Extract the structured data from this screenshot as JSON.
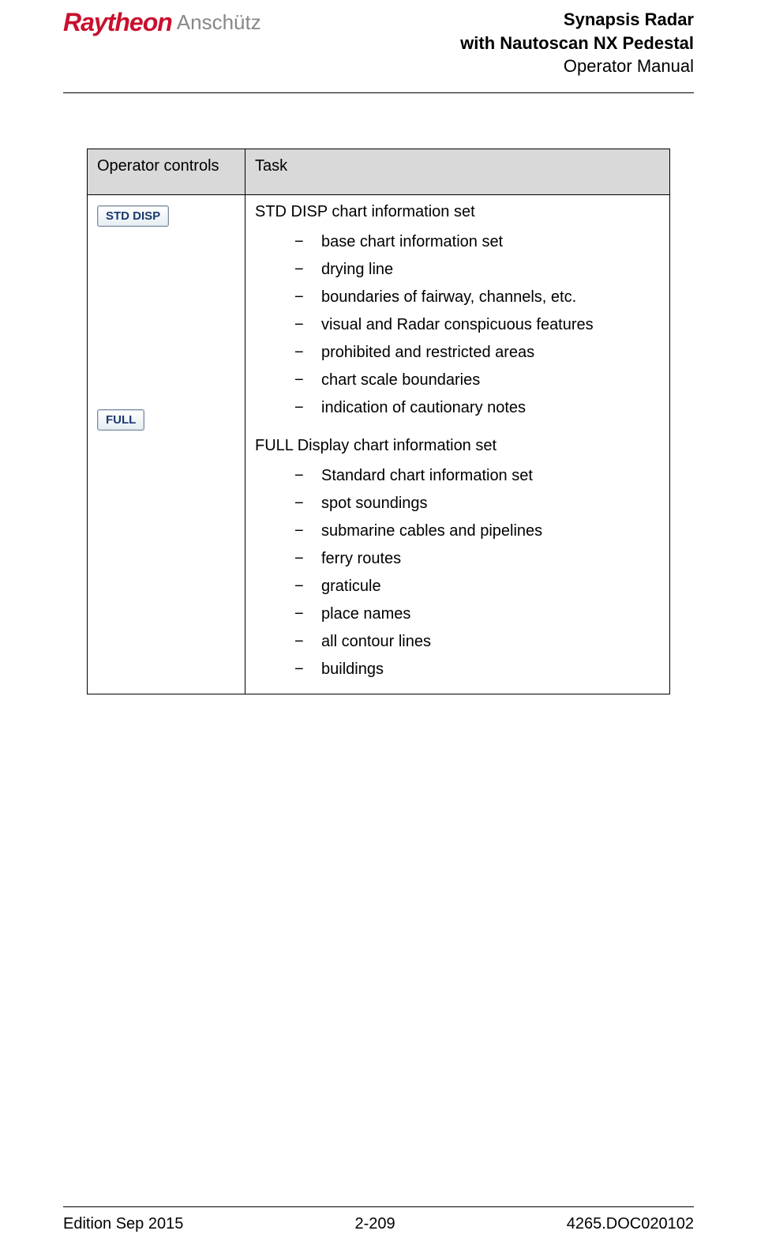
{
  "logo": {
    "raytheon": "Raytheon",
    "anschutz": "Anschütz"
  },
  "header": {
    "line1": "Synapsis Radar",
    "line2": "with Nautoscan NX Pedestal",
    "line3": "Operator Manual"
  },
  "table": {
    "headers": {
      "controls": "Operator controls",
      "task": "Task"
    },
    "buttons": {
      "stdDisp": "STD DISP",
      "full": "FULL"
    },
    "section1": {
      "title": "STD DISP chart information set",
      "items": [
        "base chart information set",
        "drying line",
        "boundaries of fairway, channels, etc.",
        "visual and Radar conspicuous features",
        "prohibited and restricted areas",
        "chart scale boundaries",
        "indication of cautionary notes"
      ]
    },
    "section2": {
      "title": "FULL Display chart information set",
      "items": [
        "Standard chart information set",
        "spot soundings",
        "submarine cables and pipelines",
        "ferry routes",
        "graticule",
        "place names",
        "all contour lines",
        "buildings"
      ]
    }
  },
  "footer": {
    "edition": "Edition Sep 2015",
    "page": "2-209",
    "docnum": "4265.DOC020102"
  },
  "colors": {
    "brandRed": "#c8102e",
    "brandGrey": "#888888",
    "tableHeaderBg": "#d9d9d9",
    "buttonText": "#1a3a6e",
    "buttonBorder": "#7a8aa0"
  }
}
